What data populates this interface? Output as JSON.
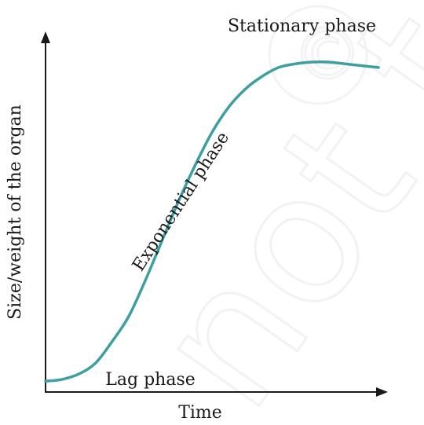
{
  "chart_data": {
    "type": "line",
    "title": "",
    "xlabel": "Time",
    "ylabel": "Size/weight of the organ",
    "series": [
      {
        "name": "",
        "color": "#3d9fa2",
        "x": [
          0,
          0.05,
          0.1,
          0.15,
          0.2,
          0.25,
          0.3,
          0.35,
          0.4,
          0.45,
          0.5,
          0.55,
          0.6,
          0.65,
          0.7,
          0.75,
          0.8,
          0.85,
          0.9,
          0.95,
          1.0
        ],
        "values": [
          0.03,
          0.035,
          0.05,
          0.08,
          0.14,
          0.21,
          0.31,
          0.42,
          0.53,
          0.63,
          0.72,
          0.79,
          0.84,
          0.875,
          0.9,
          0.91,
          0.915,
          0.915,
          0.91,
          0.905,
          0.9
        ]
      }
    ],
    "annotations": [
      {
        "text": "Lag phase",
        "x": 0.18,
        "y": 0.02
      },
      {
        "text": "Exponential phase",
        "x": 0.42,
        "y": 0.52,
        "rotation": -57
      },
      {
        "text": "Stationary phase",
        "x": 0.77,
        "y": 1.0
      }
    ],
    "xlim": [
      0,
      1
    ],
    "ylim": [
      0,
      1
    ],
    "grid": false,
    "show_ticks": false
  }
}
